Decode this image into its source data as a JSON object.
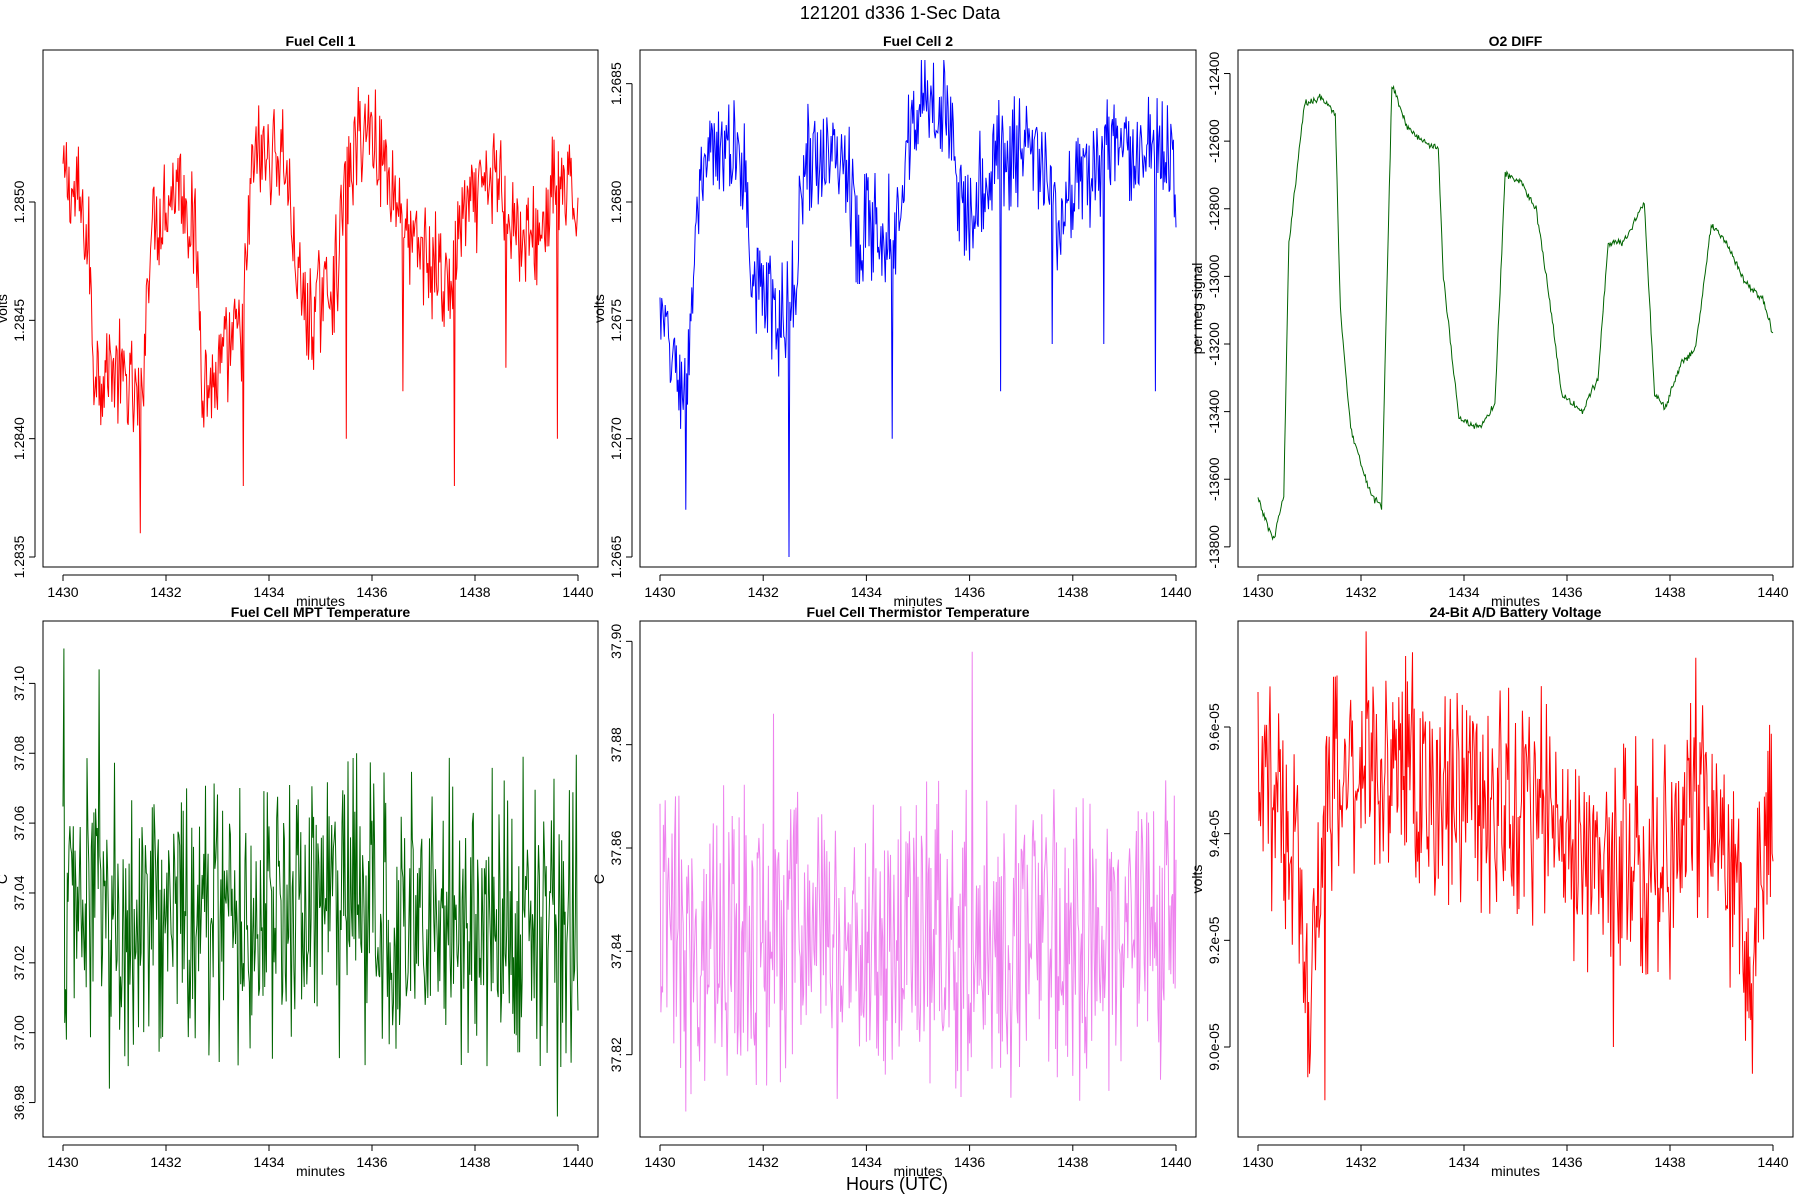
{
  "figure": {
    "title": "121201   d336   1-Sec Data",
    "xlabel": "Hours (UTC)"
  },
  "chart_data": [
    {
      "type": "line",
      "title": "Fuel Cell 1",
      "xlabel": "minutes",
      "ylabel": "volts",
      "color": "#ff0000",
      "xlim": [
        1430,
        1440
      ],
      "ylim": [
        1.2835,
        1.2856
      ],
      "xticks": [
        "1430",
        "1432",
        "1434",
        "1436",
        "1438",
        "1440"
      ],
      "yticks": [
        "1.2835",
        "1.2840",
        "1.2845",
        "1.2850"
      ],
      "ytick_values": [
        1.2835,
        1.284,
        1.2845,
        1.285
      ],
      "x": [
        1430,
        1430.3,
        1430.5,
        1430.6,
        1431,
        1431.3,
        1431.5,
        1431.7,
        1432,
        1432.3,
        1432.6,
        1432.7,
        1432.9,
        1433.1,
        1433.3,
        1433.5,
        1433.7,
        1434,
        1434.3,
        1434.6,
        1434.8,
        1435,
        1435.3,
        1435.5,
        1435.8,
        1436,
        1436.2,
        1436.5,
        1436.8,
        1437,
        1437.3,
        1437.5,
        1437.7,
        1438,
        1438.3,
        1438.5,
        1438.8,
        1439,
        1439.3,
        1439.6,
        1439.8,
        1440
      ],
      "values": [
        1.2851,
        1.285,
        1.2848,
        1.2843,
        1.2843,
        1.2842,
        1.2841,
        1.2849,
        1.285,
        1.2851,
        1.2848,
        1.2843,
        1.2842,
        1.2843,
        1.2844,
        1.2845,
        1.2852,
        1.2852,
        1.2852,
        1.2846,
        1.2845,
        1.2846,
        1.2847,
        1.2851,
        1.2853,
        1.2853,
        1.2852,
        1.285,
        1.2848,
        1.2848,
        1.2847,
        1.2846,
        1.2849,
        1.285,
        1.2851,
        1.2851,
        1.2849,
        1.2848,
        1.2849,
        1.2851,
        1.285,
        1.285
      ],
      "noise": 0.00025,
      "spikes": [
        [
          1431.5,
          1.2836
        ],
        [
          1433.5,
          1.2838
        ],
        [
          1435.5,
          1.284
        ],
        [
          1436.6,
          1.2842
        ],
        [
          1437.6,
          1.2838
        ],
        [
          1438.6,
          1.2843
        ],
        [
          1439.6,
          1.284
        ]
      ]
    },
    {
      "type": "line",
      "title": "Fuel Cell 2",
      "xlabel": "minutes",
      "ylabel": "volts",
      "color": "#0000ff",
      "xlim": [
        1430,
        1440
      ],
      "ylim": [
        1.2665,
        1.2686
      ],
      "xticks": [
        "1430",
        "1432",
        "1434",
        "1436",
        "1438",
        "1440"
      ],
      "yticks": [
        "1.2665",
        "1.2670",
        "1.2675",
        "1.2680",
        "1.2685"
      ],
      "ytick_values": [
        1.2665,
        1.267,
        1.2675,
        1.268,
        1.2685
      ],
      "x": [
        1430,
        1430.3,
        1430.5,
        1430.7,
        1431,
        1431.3,
        1431.6,
        1431.8,
        1432,
        1432.3,
        1432.6,
        1432.8,
        1433,
        1433.3,
        1433.6,
        1433.8,
        1434,
        1434.3,
        1434.6,
        1434.8,
        1435,
        1435.3,
        1435.6,
        1435.8,
        1436,
        1436.3,
        1436.6,
        1436.8,
        1437,
        1437.3,
        1437.6,
        1437.8,
        1438,
        1438.3,
        1438.6,
        1438.8,
        1439,
        1439.3,
        1439.6,
        1439.8,
        1440
      ],
      "values": [
        1.2675,
        1.2673,
        1.2672,
        1.2679,
        1.2682,
        1.2682,
        1.2682,
        1.2677,
        1.2676,
        1.2675,
        1.2676,
        1.2682,
        1.2682,
        1.2682,
        1.2682,
        1.2679,
        1.2679,
        1.2679,
        1.2679,
        1.2683,
        1.2684,
        1.2684,
        1.2684,
        1.268,
        1.268,
        1.2681,
        1.2682,
        1.2682,
        1.2682,
        1.2682,
        1.268,
        1.2679,
        1.268,
        1.2681,
        1.2682,
        1.2682,
        1.2682,
        1.2682,
        1.2682,
        1.2682,
        1.2681
      ],
      "noise": 0.00025,
      "spikes": [
        [
          1430.5,
          1.2667
        ],
        [
          1432.5,
          1.2665
        ],
        [
          1434.5,
          1.267
        ],
        [
          1436.6,
          1.2672
        ],
        [
          1437.6,
          1.2674
        ],
        [
          1438.6,
          1.2674
        ],
        [
          1439.6,
          1.2672
        ]
      ]
    },
    {
      "type": "line",
      "title": "O2 DIFF",
      "xlabel": "minutes",
      "ylabel": "per meg signal",
      "color": "#006400",
      "xlim": [
        1430,
        1440
      ],
      "ylim": [
        -13830,
        -12360
      ],
      "xticks": [
        "1430",
        "1432",
        "1434",
        "1436",
        "1438",
        "1440"
      ],
      "yticks": [
        "-13800",
        "-13600",
        "-13400",
        "-13200",
        "-13000",
        "-12800",
        "-12600",
        "-12400"
      ],
      "ytick_values": [
        -13800,
        -13600,
        -13400,
        -13200,
        -13000,
        -12800,
        -12600,
        -12400
      ],
      "x": [
        1430,
        1430.3,
        1430.5,
        1430.6,
        1430.9,
        1431.2,
        1431.5,
        1431.6,
        1431.8,
        1432,
        1432.2,
        1432.4,
        1432.6,
        1432.9,
        1433.2,
        1433.5,
        1433.6,
        1433.9,
        1434.3,
        1434.6,
        1434.8,
        1435.1,
        1435.4,
        1435.6,
        1435.9,
        1436.3,
        1436.6,
        1436.8,
        1437.1,
        1437.5,
        1437.7,
        1437.9,
        1438.2,
        1438.5,
        1438.8,
        1439.1,
        1439.4,
        1439.6,
        1439.8,
        1440
      ],
      "values": [
        -13660,
        -13780,
        -13650,
        -12900,
        -12490,
        -12470,
        -12520,
        -13100,
        -13450,
        -13550,
        -13650,
        -13680,
        -12430,
        -12560,
        -12600,
        -12620,
        -13000,
        -13420,
        -13450,
        -13380,
        -12700,
        -12720,
        -12800,
        -13000,
        -13350,
        -13400,
        -13300,
        -12900,
        -12900,
        -12780,
        -13350,
        -13390,
        -13260,
        -13210,
        -12850,
        -12900,
        -13000,
        -13040,
        -13070,
        -13170
      ],
      "noise": 12,
      "spikes": []
    },
    {
      "type": "line",
      "title": "Fuel Cell MPT Temperature",
      "xlabel": "minutes",
      "ylabel": "C",
      "color": "#006400",
      "xlim": [
        1430,
        1440
      ],
      "ylim": [
        36.973,
        37.115
      ],
      "xticks": [
        "1430",
        "1432",
        "1434",
        "1436",
        "1438",
        "1440"
      ],
      "yticks": [
        "36.98",
        "37.00",
        "37.02",
        "37.04",
        "37.06",
        "37.08",
        "37.10"
      ],
      "ytick_values": [
        36.98,
        37.0,
        37.02,
        37.04,
        37.06,
        37.08,
        37.1
      ],
      "x": [
        1430,
        1440
      ],
      "values": [
        37.035,
        37.035
      ],
      "noise": 0.045,
      "spikes": [
        [
          1430.02,
          37.11
        ],
        [
          1430.7,
          37.104
        ],
        [
          1439.6,
          36.976
        ],
        [
          1430.9,
          36.984
        ]
      ]
    },
    {
      "type": "line",
      "title": "Fuel Cell Thermistor Temperature",
      "xlabel": "minutes",
      "ylabel": "C",
      "color": "#ee82ee",
      "xlim": [
        1430,
        1440
      ],
      "ylim": [
        37.806,
        37.902
      ],
      "xticks": [
        "1430",
        "1432",
        "1434",
        "1436",
        "1438",
        "1440"
      ],
      "yticks": [
        "37.82",
        "37.84",
        "37.86",
        "37.88",
        "37.90"
      ],
      "ytick_values": [
        37.82,
        37.84,
        37.86,
        37.88,
        37.9
      ],
      "x": [
        1430,
        1440
      ],
      "values": [
        37.843,
        37.843
      ],
      "noise": 0.032,
      "spikes": [
        [
          1436.05,
          37.898
        ],
        [
          1432.2,
          37.886
        ],
        [
          1430.5,
          37.809
        ]
      ]
    },
    {
      "type": "line",
      "title": "24-Bit A/D Battery Voltage",
      "xlabel": "minutes",
      "ylabel": "volts",
      "color": "#ff0000",
      "xlim": [
        1430,
        1440
      ],
      "ylim": [
        8.85e-05,
        9.78e-05
      ],
      "xticks": [
        "1430",
        "1432",
        "1434",
        "1436",
        "1438",
        "1440"
      ],
      "yticks": [
        "9.0e-05",
        "9.2e-05",
        "9.4e-05",
        "9.6e-05"
      ],
      "ytick_values": [
        9e-05,
        9.2e-05,
        9.4e-05,
        9.6e-05
      ],
      "x": [
        1430,
        1430.4,
        1430.8,
        1431.0,
        1431.3,
        1431.6,
        1432,
        1432.5,
        1433,
        1433.5,
        1434,
        1434.5,
        1435,
        1435.5,
        1436,
        1436.5,
        1436.9,
        1437.2,
        1437.6,
        1438,
        1438.5,
        1439,
        1439.4,
        1439.6,
        1439.8,
        1440
      ],
      "values": [
        9.45e-05,
        9.5e-05,
        9.3e-05,
        9.1e-05,
        9.45e-05,
        9.5e-05,
        9.55e-05,
        9.55e-05,
        9.5e-05,
        9.45e-05,
        9.5e-05,
        9.45e-05,
        9.45e-05,
        9.45e-05,
        9.4e-05,
        9.35e-05,
        9.3e-05,
        9.4e-05,
        9.35e-05,
        9.35e-05,
        9.45e-05,
        9.4e-05,
        9.2e-05,
        9.15e-05,
        9.3e-05,
        9.45e-05
      ],
      "noise": 2.3e-06,
      "spikes": [
        [
          1431.3,
          8.9e-05
        ],
        [
          1433.0,
          9.74e-05
        ],
        [
          1438.5,
          9.73e-05
        ],
        [
          1436.9,
          9e-05
        ],
        [
          1439.6,
          8.95e-05
        ]
      ]
    }
  ]
}
